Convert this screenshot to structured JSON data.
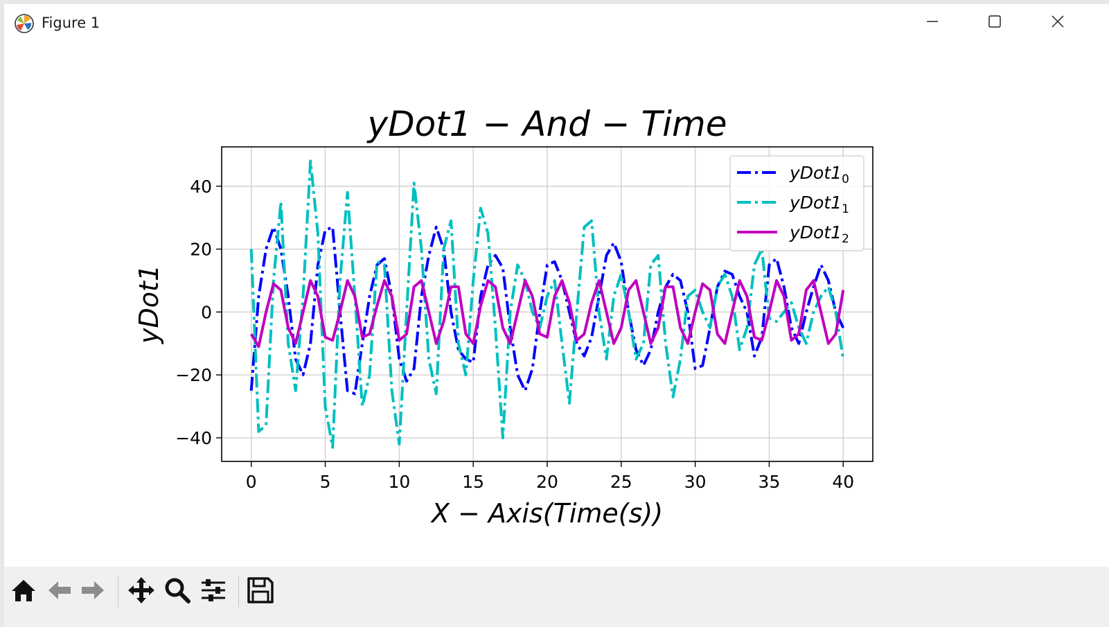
{
  "window": {
    "title": "Figure 1",
    "icon": "matplotlib-logo-icon",
    "controls": [
      "minimize-icon",
      "maximize-icon",
      "close-icon"
    ]
  },
  "toolbar": {
    "buttons": [
      "home-icon",
      "back-arrow-icon",
      "forward-arrow-icon",
      "pan-move-icon",
      "zoom-magnifier-icon",
      "configure-subplots-icon",
      "save-floppy-icon"
    ]
  },
  "chart_data": {
    "type": "line",
    "title": "yDot1 − And − Time",
    "xlabel": "X − Axis(Time(s))",
    "ylabel": "yDot1",
    "xlim": [
      -2,
      42
    ],
    "ylim": [
      -47.5,
      52.5
    ],
    "xticks": [
      0,
      5,
      10,
      15,
      20,
      25,
      30,
      35,
      40
    ],
    "xtick_labels": [
      "0",
      "5",
      "10",
      "15",
      "20",
      "25",
      "30",
      "35",
      "40"
    ],
    "yticks": [
      -40,
      -20,
      0,
      20,
      40
    ],
    "ytick_labels": [
      "−40",
      "−20",
      "0",
      "20",
      "40"
    ],
    "grid": true,
    "legend": "top-right",
    "x": [
      0,
      0.5,
      1,
      1.5,
      2,
      2.5,
      3,
      3.5,
      4,
      4.5,
      5,
      5.5,
      6,
      6.5,
      7,
      7.5,
      8,
      8.5,
      9,
      9.5,
      10,
      10.5,
      11,
      11.5,
      12,
      12.5,
      13,
      13.5,
      14,
      14.5,
      15,
      15.5,
      16,
      16.5,
      17,
      17.5,
      18,
      18.5,
      19,
      19.5,
      20,
      20.5,
      21,
      21.5,
      22,
      22.5,
      23,
      23.5,
      24,
      24.5,
      25,
      25.5,
      26,
      26.5,
      27,
      27.5,
      28,
      28.5,
      29,
      29.5,
      30,
      30.5,
      31,
      31.5,
      32,
      32.5,
      33,
      33.5,
      34,
      34.5,
      35,
      35.5,
      36,
      36.5,
      37,
      37.5,
      38,
      38.5,
      39,
      39.5,
      40
    ],
    "series": [
      {
        "name": "yDot1",
        "subscript": "0",
        "color": "#0000ff",
        "style": "dashdot",
        "values": [
          -25,
          5,
          20,
          27,
          20,
          5,
          -15,
          -20,
          -10,
          15,
          26,
          27,
          0,
          -25,
          -26,
          -10,
          5,
          15,
          17,
          5,
          -15,
          -22,
          -18,
          5,
          18,
          27,
          20,
          0,
          -12,
          -15,
          -16,
          5,
          15,
          18,
          14,
          -5,
          -20,
          -25,
          -18,
          0,
          15,
          16,
          10,
          0,
          -10,
          -14,
          -8,
          5,
          18,
          22,
          16,
          0,
          -12,
          -17,
          -12,
          0,
          8,
          12,
          10,
          0,
          -18,
          -17,
          -5,
          8,
          13,
          12,
          5,
          0,
          -14,
          -8,
          15,
          17,
          8,
          -5,
          -10,
          0,
          8,
          15,
          10,
          0,
          -5
        ]
      },
      {
        "name": "yDot1",
        "subscript": "1",
        "color": "#00bfbf",
        "style": "dashdot",
        "values": [
          20,
          -38,
          -36,
          10,
          35,
          -10,
          -25,
          5,
          48,
          25,
          -30,
          -43,
          10,
          38,
          5,
          -30,
          -20,
          16,
          15,
          -25,
          -42,
          0,
          41,
          20,
          -15,
          -26,
          20,
          29,
          -10,
          -20,
          10,
          33,
          25,
          -5,
          -40,
          0,
          15,
          10,
          0,
          -5,
          5,
          10,
          -10,
          -29,
          0,
          27,
          29,
          0,
          -15,
          5,
          12,
          0,
          -15,
          -10,
          15,
          18,
          -10,
          -27,
          -15,
          5,
          7,
          0,
          -5,
          8,
          12,
          5,
          -12,
          -5,
          15,
          20,
          -2,
          -3,
          0,
          3,
          -5,
          -10,
          0,
          5,
          8,
          0,
          -15
        ]
      },
      {
        "name": "yDot1",
        "subscript": "2",
        "color": "#bf00bf",
        "style": "solid",
        "values": [
          -7,
          -11,
          0,
          9,
          7,
          -5,
          -10,
          0,
          10,
          5,
          -8,
          -9,
          0,
          10,
          5,
          -8,
          -7,
          2,
          10,
          5,
          -9,
          -7,
          8,
          10,
          0,
          -10,
          -3,
          8,
          8,
          -7,
          -10,
          2,
          10,
          8,
          -5,
          -10,
          0,
          10,
          5,
          -7,
          -8,
          5,
          10,
          3,
          -9,
          -7,
          3,
          10,
          0,
          -10,
          -5,
          7,
          10,
          0,
          -10,
          -5,
          8,
          8,
          -5,
          -10,
          0,
          9,
          7,
          -7,
          -10,
          0,
          10,
          5,
          -8,
          -9,
          0,
          10,
          5,
          -9,
          -7,
          7,
          10,
          0,
          -10,
          -7,
          7
        ]
      }
    ]
  }
}
